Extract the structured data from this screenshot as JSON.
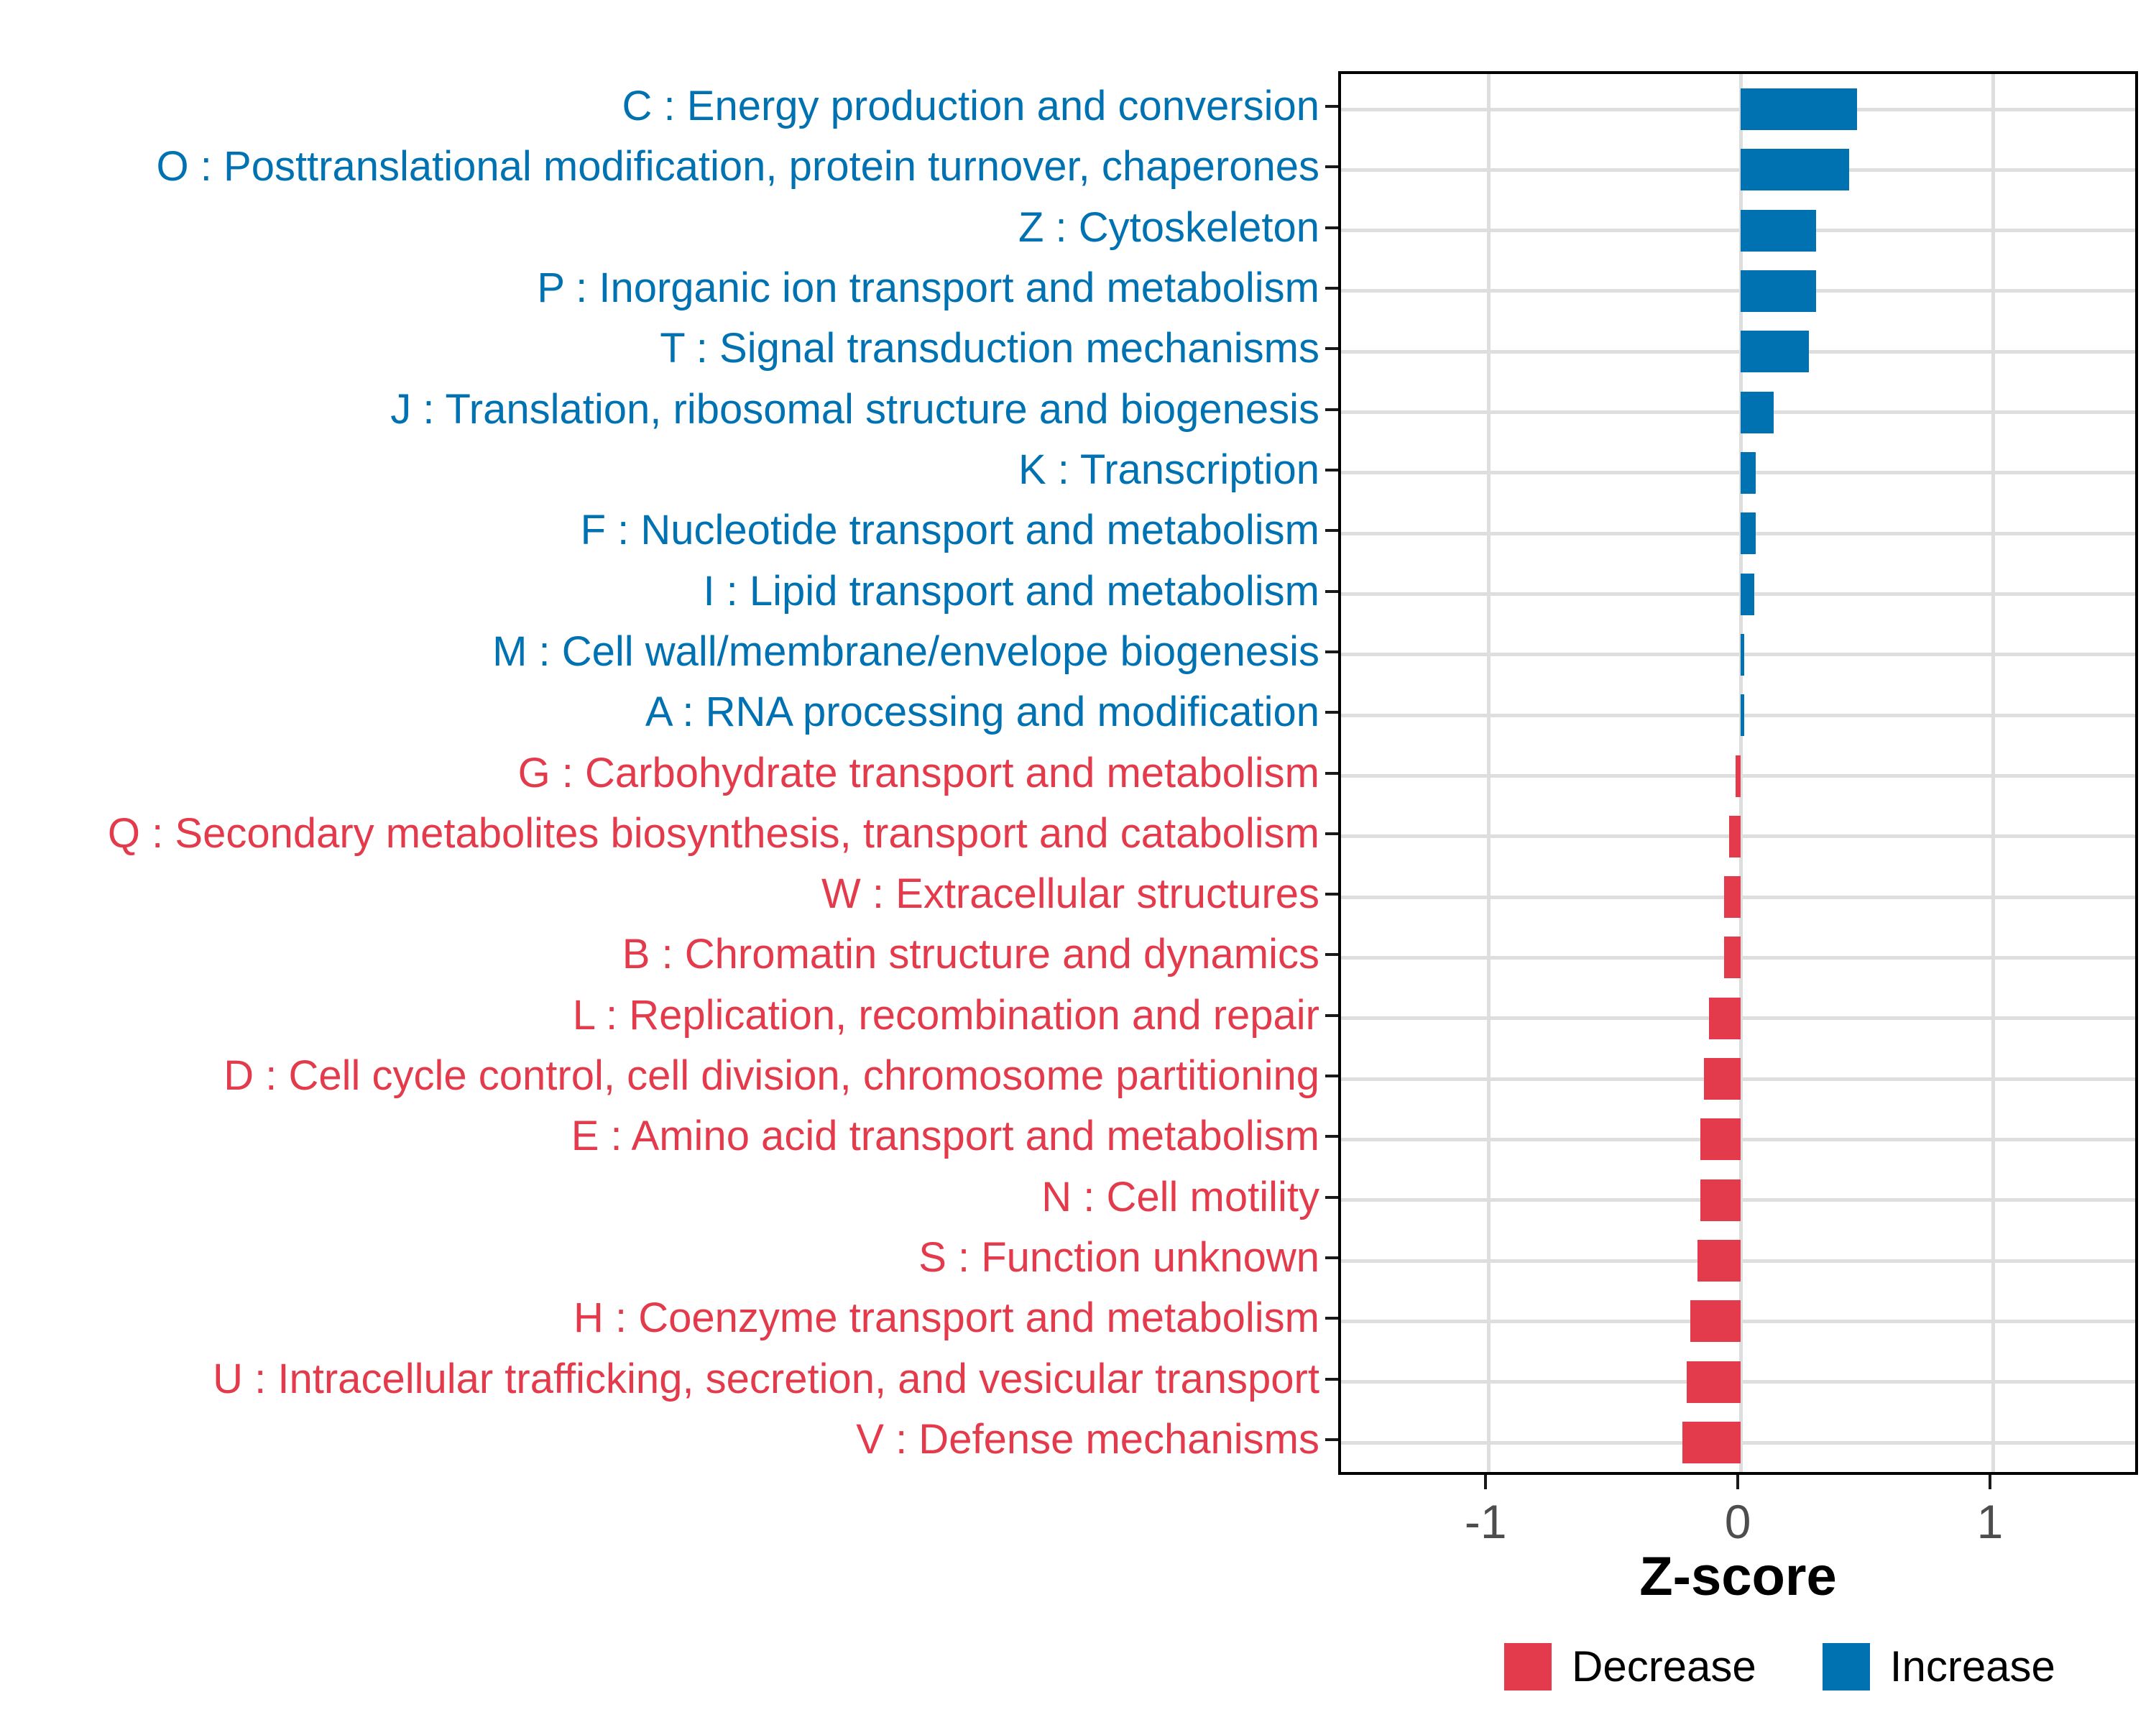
{
  "chart_data": {
    "type": "bar",
    "orientation": "horizontal",
    "xlabel": "Z-score",
    "x_ticks": [
      -1,
      0,
      1
    ],
    "xlim": [
      -1.585,
      1.587
    ],
    "grid": "major-only",
    "legend_position": "bottom",
    "categories": [
      {
        "label": "C : Energy production and conversion",
        "value": 0.46,
        "group": "Increase"
      },
      {
        "label": "O : Posttranslational modification, protein turnover, chaperones",
        "value": 0.43,
        "group": "Increase"
      },
      {
        "label": "Z : Cytoskeleton",
        "value": 0.3,
        "group": "Increase"
      },
      {
        "label": "P : Inorganic ion transport and metabolism",
        "value": 0.3,
        "group": "Increase"
      },
      {
        "label": "T : Signal transduction mechanisms",
        "value": 0.27,
        "group": "Increase"
      },
      {
        "label": "J : Translation, ribosomal structure and biogenesis",
        "value": 0.13,
        "group": "Increase"
      },
      {
        "label": "K : Transcription",
        "value": 0.06,
        "group": "Increase"
      },
      {
        "label": "F : Nucleotide transport and metabolism",
        "value": 0.06,
        "group": "Increase"
      },
      {
        "label": "I : Lipid transport and metabolism",
        "value": 0.055,
        "group": "Increase"
      },
      {
        "label": "M : Cell wall/membrane/envelope biogenesis",
        "value": 0.015,
        "group": "Increase"
      },
      {
        "label": "A : RNA processing and modification",
        "value": 0.015,
        "group": "Increase"
      },
      {
        "label": "G : Carbohydrate transport and metabolism",
        "value": -0.02,
        "group": "Decrease"
      },
      {
        "label": "Q : Secondary metabolites biosynthesis, transport and catabolism",
        "value": -0.045,
        "group": "Decrease"
      },
      {
        "label": "W : Extracellular structures",
        "value": -0.065,
        "group": "Decrease"
      },
      {
        "label": "B : Chromatin structure and dynamics",
        "value": -0.065,
        "group": "Decrease"
      },
      {
        "label": "L : Replication, recombination and repair",
        "value": -0.125,
        "group": "Decrease"
      },
      {
        "label": "D : Cell cycle control, cell division, chromosome partitioning",
        "value": -0.145,
        "group": "Decrease"
      },
      {
        "label": "E : Amino acid transport and metabolism",
        "value": -0.16,
        "group": "Decrease"
      },
      {
        "label": "N : Cell motility",
        "value": -0.16,
        "group": "Decrease"
      },
      {
        "label": "S : Function unknown",
        "value": -0.17,
        "group": "Decrease"
      },
      {
        "label": "H : Coenzyme transport and metabolism",
        "value": -0.2,
        "group": "Decrease"
      },
      {
        "label": "U : Intracellular trafficking, secretion, and vesicular transport",
        "value": -0.215,
        "group": "Decrease"
      },
      {
        "label": "V : Defense mechanisms",
        "value": -0.23,
        "group": "Decrease"
      }
    ],
    "legend": [
      {
        "label": "Decrease",
        "color": "#E33B4C"
      },
      {
        "label": "Increase",
        "color": "#0072B2"
      }
    ]
  },
  "colors": {
    "increase": "#0072B2",
    "decrease": "#E33B4C",
    "grid": "#DEDEDE",
    "tick_label": "#4D4D4D",
    "axis": "#000000"
  }
}
